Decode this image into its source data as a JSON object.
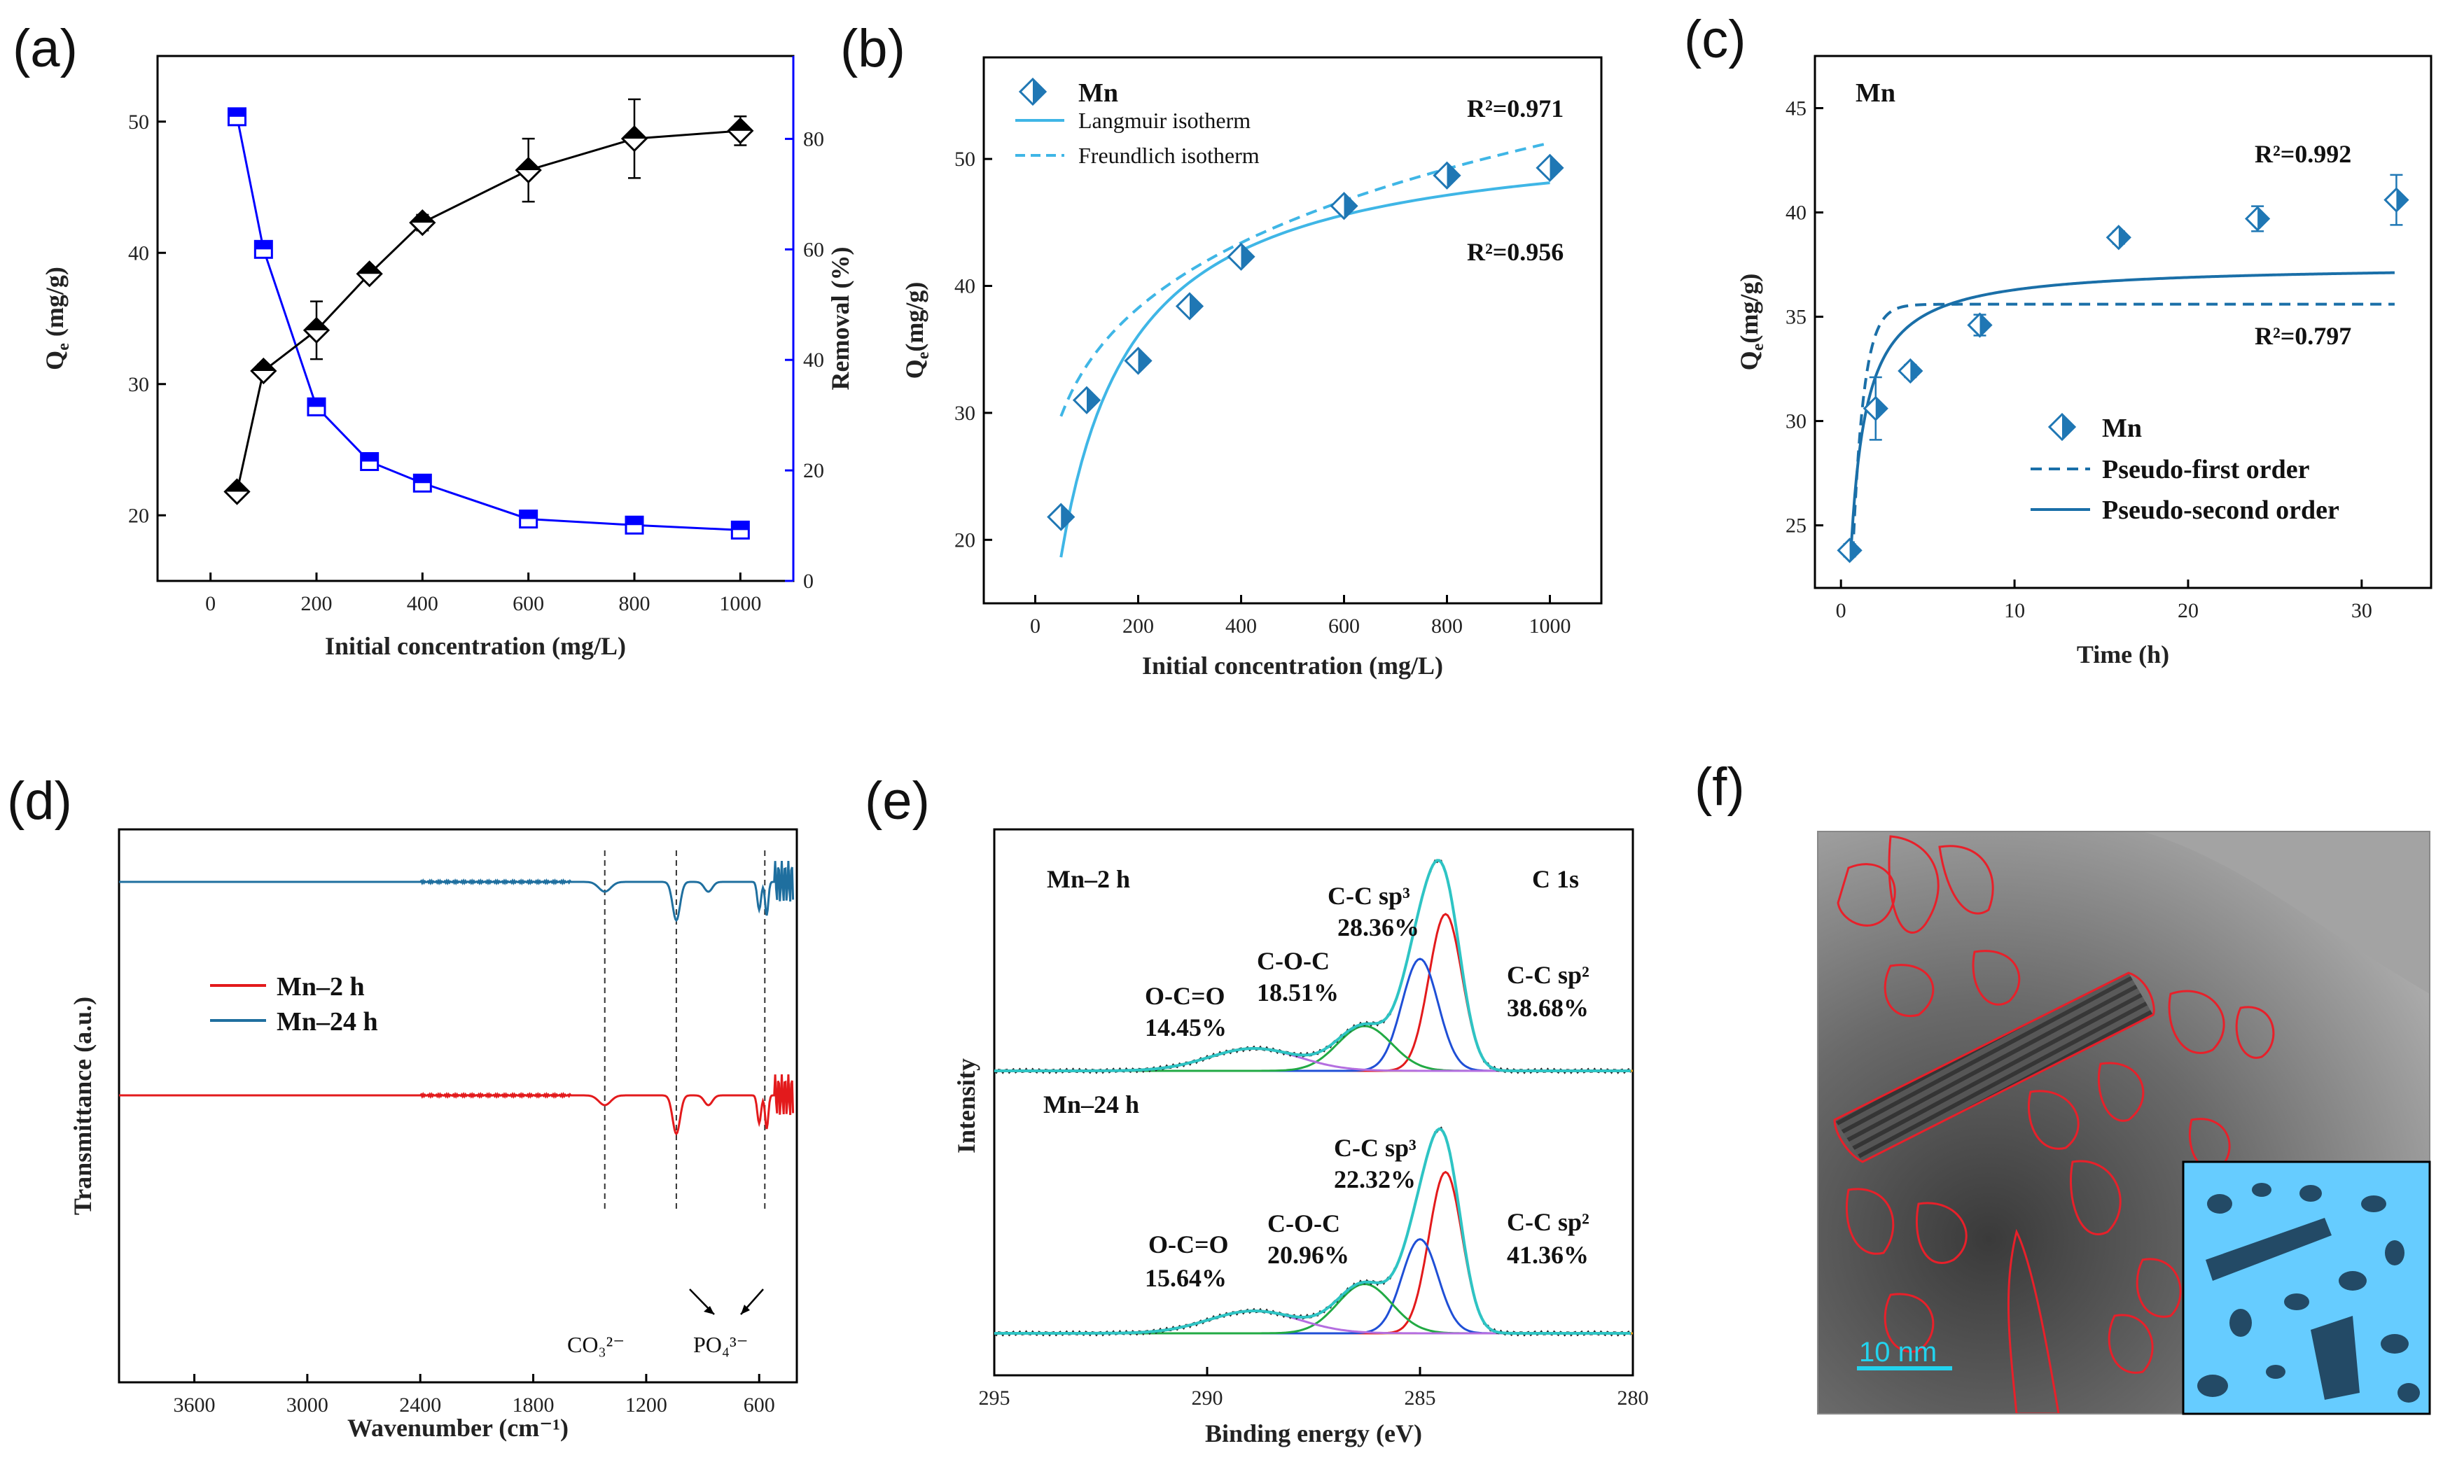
{
  "chart_data": [
    {
      "panel": "(a)",
      "type": "line",
      "xlabel": "Initial concentration (mg/L)",
      "ylabel": "Q_e (mg/g)",
      "y2label": "Removal (%)",
      "xlim": [
        -100,
        1100
      ],
      "ylim": [
        15,
        55
      ],
      "y2lim": [
        0,
        95
      ],
      "xticks": [
        0,
        200,
        400,
        600,
        800,
        1000
      ],
      "yticks": [
        20,
        30,
        40,
        50
      ],
      "y2ticks": [
        0,
        20,
        40,
        60,
        80
      ],
      "x": [
        50,
        100,
        200,
        300,
        400,
        600,
        800,
        1000
      ],
      "series": [
        {
          "name": "Qe",
          "axis": "left",
          "color": "#000000",
          "values": [
            21.8,
            31.0,
            34.1,
            38.4,
            42.3,
            46.3,
            48.7,
            49.3
          ],
          "errors": [
            0.4,
            0.5,
            2.2,
            0.4,
            0.6,
            2.4,
            3.0,
            1.1
          ]
        },
        {
          "name": "Removal",
          "axis": "right",
          "color": "#0000ff",
          "values": [
            84.0,
            60.0,
            31.5,
            21.6,
            17.7,
            11.2,
            10.1,
            9.2
          ]
        }
      ]
    },
    {
      "panel": "(b)",
      "type": "scatter",
      "xlabel": "Initial concentration (mg/L)",
      "ylabel": "Q_e(mg/g)",
      "xlim": [
        -100,
        1100
      ],
      "ylim": [
        15,
        58
      ],
      "xticks": [
        0,
        200,
        400,
        600,
        800,
        1000
      ],
      "yticks": [
        20,
        30,
        40,
        50
      ],
      "x": [
        50,
        100,
        200,
        300,
        400,
        600,
        800,
        1000
      ],
      "series": [
        {
          "name": "Mn",
          "values": [
            21.8,
            31.0,
            34.1,
            38.4,
            42.3,
            46.3,
            48.7,
            49.3
          ]
        },
        {
          "name": "Langmuir isotherm",
          "model": "langmuir",
          "qm": 52.5,
          "kl": 0.011,
          "r2": "R²=0.956"
        },
        {
          "name": "Freundlich isotherm",
          "model": "freundlich",
          "kf": 14.6,
          "n": 5.5,
          "r2": "R²=0.971"
        }
      ],
      "legend": [
        "Mn",
        "Langmuir isotherm",
        "Freundlich isotherm"
      ],
      "annotations": [
        "R²=0.971",
        "R²=0.956"
      ]
    },
    {
      "panel": "(c)",
      "type": "scatter",
      "xlabel": "Time (h)",
      "ylabel": "Q_e(mg/g)",
      "xlim": [
        -1.5,
        34
      ],
      "ylim": [
        22,
        47.5
      ],
      "xticks": [
        0,
        10,
        20,
        30
      ],
      "yticks": [
        25,
        30,
        35,
        40,
        45
      ],
      "x": [
        0.5,
        2,
        4,
        8,
        16,
        24,
        32
      ],
      "series": [
        {
          "name": "Mn",
          "values": [
            23.8,
            30.6,
            32.4,
            34.6,
            38.8,
            39.7,
            40.6
          ],
          "errors": [
            0.3,
            1.5,
            0.3,
            0.5,
            0.3,
            0.6,
            1.2
          ]
        },
        {
          "name": "Pseudo-first order",
          "model": "pfo",
          "qe": 35.6,
          "k1": 1.6
        },
        {
          "name": "Pseudo-second order",
          "model": "pso",
          "qe": 37.5,
          "k2": 0.08
        }
      ],
      "legend_title": "Mn",
      "legend": [
        "Mn",
        "Pseudo-first order",
        "Pseudo-second order"
      ],
      "annotations": [
        "R²=0.992",
        "R²=0.797"
      ]
    },
    {
      "panel": "(d)",
      "type": "line",
      "xlabel": "Wavenumber (cm⁻¹)",
      "ylabel": "Transmittance (a.u.)",
      "xlim": [
        4000,
        400
      ],
      "xticks": [
        3600,
        3000,
        2400,
        1800,
        1200,
        600
      ],
      "series": [
        {
          "name": "Mn–2 h",
          "color": "#e31a1c"
        },
        {
          "name": "Mn–24 h",
          "color": "#1f6f9f"
        }
      ],
      "reference_lines": [
        1420,
        1040,
        570
      ],
      "annotations": [
        "CO₃²⁻",
        "PO₄³⁻"
      ]
    },
    {
      "panel": "(e)",
      "type": "line",
      "xlabel": "Binding energy (eV)",
      "ylabel": "Intensity",
      "xlim": [
        295,
        280
      ],
      "xticks": [
        295,
        290,
        285,
        280
      ],
      "spectra": [
        {
          "name": "Mn–2 h",
          "region": "C 1s",
          "components": [
            {
              "label": "C-C sp²",
              "percent": "38.68%",
              "center": 284.4
            },
            {
              "label": "C-C sp³",
              "percent": "28.36%",
              "center": 285.0
            },
            {
              "label": "C-O-C",
              "percent": "18.51%",
              "center": 286.3
            },
            {
              "label": "O-C=O",
              "percent": "14.45%",
              "center": 288.9
            }
          ]
        },
        {
          "name": "Mn–24 h",
          "components": [
            {
              "label": "C-C sp²",
              "percent": "41.36%",
              "center": 284.4
            },
            {
              "label": "C-C sp³",
              "percent": "22.32%",
              "center": 285.0
            },
            {
              "label": "C-O-C",
              "percent": "20.96%",
              "center": 286.3
            },
            {
              "label": "O-C=O",
              "percent": "15.64%",
              "center": 289.0
            }
          ]
        }
      ]
    }
  ],
  "panel_f": {
    "label": "(f)",
    "scale_bar": "10 nm"
  },
  "labels": {
    "a": "(a)",
    "b": "(b)",
    "c": "(c)",
    "d": "(d)",
    "e": "(e)",
    "f": "(f)",
    "a_xlabel": "Initial concentration (mg/L)",
    "a_ylabel_main": "Q",
    "a_ylabel_sub": "e",
    "a_ylabel_unit": " (mg/g)",
    "a_y2label": "Removal (%)",
    "b_xlabel": "Initial concentration (mg/L)",
    "b_ylabel_main": "Q",
    "b_ylabel_sub": "e",
    "b_ylabel_unit": "(mg/g)",
    "b_leg_mn": "Mn",
    "b_leg_lang": "Langmuir isotherm",
    "b_leg_freund": "Freundlich isotherm",
    "b_r2_top": "R²=0.971",
    "b_r2_bot": "R²=0.956",
    "c_title": "Mn",
    "c_xlabel": "Time (h)",
    "c_ylabel_main": "Q",
    "c_ylabel_sub": "e",
    "c_ylabel_unit": "(mg/g)",
    "c_r2_top": "R²=0.992",
    "c_r2_bot": "R²=0.797",
    "c_leg_mn": "Mn",
    "c_leg_pfo": "Pseudo-first order",
    "c_leg_pso": "Pseudo-second order",
    "d_xlabel": "Wavenumber (cm⁻¹)",
    "d_ylabel": "Transmittance (a.u.)",
    "d_leg_2h": "Mn–2 h",
    "d_leg_24h": "Mn–24 h",
    "d_co3": "CO₃²⁻",
    "d_po4": "PO₄³⁻",
    "e_xlabel": "Binding energy (eV)",
    "e_ylabel": "Intensity",
    "e_top_name": "Mn–2 h",
    "e_region": "C 1s",
    "e_top_sp3": "C-C sp³",
    "e_top_sp3_pct": "28.36%",
    "e_top_coc": "C-O-C",
    "e_top_coc_pct": "18.51%",
    "e_top_oco": "O-C=O",
    "e_top_oco_pct": "14.45%",
    "e_top_sp2": "C-C sp²",
    "e_top_sp2_pct": "38.68%",
    "e_bot_name": "Mn–24 h",
    "e_bot_sp3": "C-C sp³",
    "e_bot_sp3_pct": "22.32%",
    "e_bot_coc": "C-O-C",
    "e_bot_coc_pct": "20.96%",
    "e_bot_oco": "O-C=O",
    "e_bot_oco_pct": "15.64%",
    "e_bot_sp2": "C-C sp²",
    "e_bot_sp2_pct": "41.36%",
    "f_scale": "10 nm"
  },
  "colors": {
    "qe": "#000000",
    "removal": "#0000ff",
    "b_fit": "#3fb6e6",
    "c_marker": "#1f77b4",
    "c_fit": "#1a6fa8",
    "ftir_red": "#e31a1c",
    "ftir_blue": "#1f6f9f",
    "xps_sp2": "#e31a1c",
    "xps_sp3": "#1f4fd6",
    "xps_coc": "#22aa44",
    "xps_oco": "#b46ee0",
    "xps_env": "#2ec4c4",
    "xps_base": "#e0a020",
    "tem_outline": "#e8202a",
    "inset_bg": "#66ccff"
  }
}
